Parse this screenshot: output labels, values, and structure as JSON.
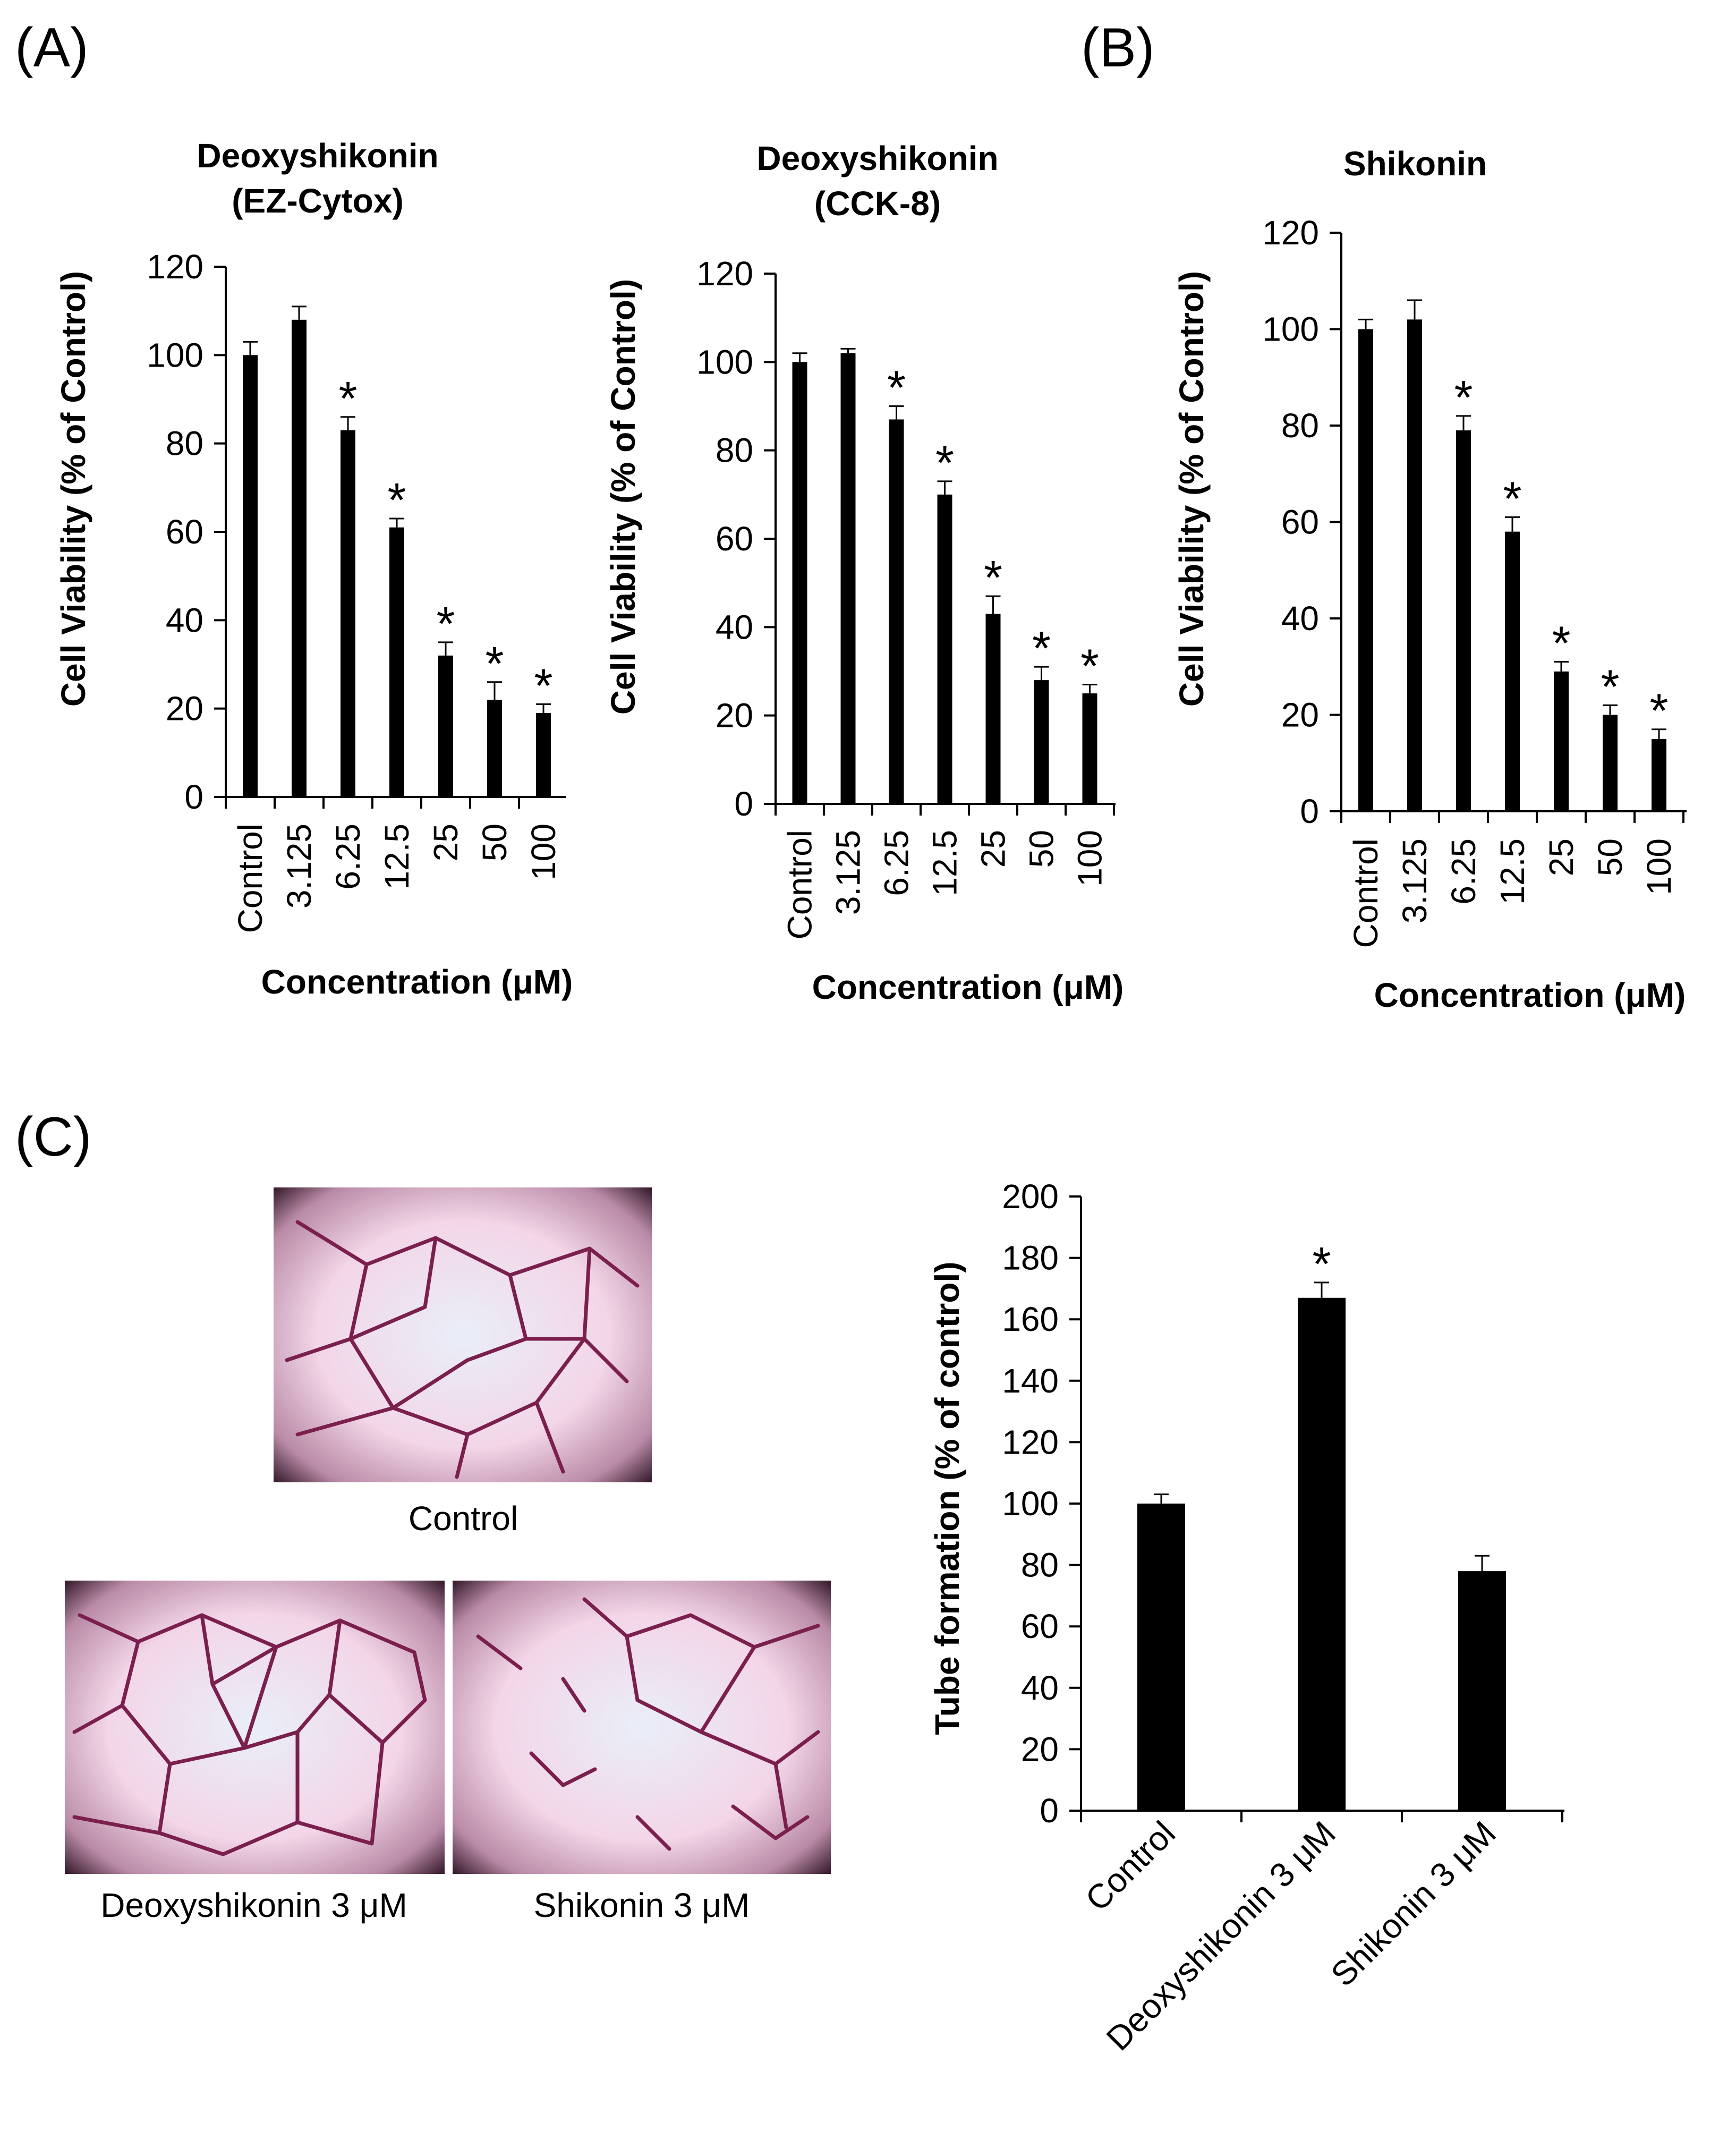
{
  "panel_labels": {
    "a": "(A)",
    "b": "(B)",
    "c": "(C)"
  },
  "micrographs": {
    "control": "Control",
    "deoxyshikonin": "Deoxyshikonin 3 μM",
    "shikonin": "Shikonin 3 μM"
  },
  "colors": {
    "bar": "#000000",
    "micrograph_bg": "#f6d8ea",
    "micrograph_center": "#e9eef8",
    "micrograph_vignette": "#3a1e30",
    "vessel": "#7a1f4e"
  },
  "chart_data": [
    {
      "id": "ez",
      "type": "bar",
      "title": [
        "Deoxyshikonin",
        "(EZ-Cytox)"
      ],
      "xlabel": "Concentration (μM)",
      "ylabel": "Cell Viability (% of Control)",
      "categories": [
        "Control",
        "3.125",
        "6.25",
        "12.5",
        "25",
        "50",
        "100"
      ],
      "values": [
        100,
        108,
        83,
        61,
        32,
        22,
        19
      ],
      "errors": [
        3,
        3,
        3,
        2,
        3,
        4,
        2
      ],
      "significant": [
        false,
        false,
        true,
        true,
        true,
        true,
        true
      ],
      "marker": "*",
      "ylim": [
        0,
        120
      ],
      "yticks": [
        0,
        20,
        40,
        60,
        80,
        100,
        120
      ]
    },
    {
      "id": "cck",
      "type": "bar",
      "title": [
        "Deoxyshikonin",
        "(CCK-8)"
      ],
      "xlabel": "Concentration (μM)",
      "ylabel": "Cell Viability (% of Control)",
      "categories": [
        "Control",
        "3.125",
        "6.25",
        "12.5",
        "25",
        "50",
        "100"
      ],
      "values": [
        100,
        102,
        87,
        70,
        43,
        28,
        25
      ],
      "errors": [
        2,
        1,
        3,
        3,
        4,
        3,
        2
      ],
      "significant": [
        false,
        false,
        true,
        true,
        true,
        true,
        true
      ],
      "marker": "*",
      "ylim": [
        0,
        120
      ],
      "yticks": [
        0,
        20,
        40,
        60,
        80,
        100,
        120
      ]
    },
    {
      "id": "shik",
      "type": "bar",
      "title": [
        "Shikonin"
      ],
      "xlabel": "Concentration (μM)",
      "ylabel": "Cell Viability (% of Control)",
      "categories": [
        "Control",
        "3.125",
        "6.25",
        "12.5",
        "25",
        "50",
        "100"
      ],
      "values": [
        100,
        102,
        79,
        58,
        29,
        20,
        15
      ],
      "errors": [
        2,
        4,
        3,
        3,
        2,
        2,
        2
      ],
      "significant": [
        false,
        false,
        true,
        true,
        true,
        true,
        true
      ],
      "marker": "*",
      "ylim": [
        0,
        120
      ],
      "yticks": [
        0,
        20,
        40,
        60,
        80,
        100,
        120
      ]
    },
    {
      "id": "tube",
      "type": "bar",
      "title": [],
      "xlabel": "",
      "ylabel": "Tube formation (% of control)",
      "categories": [
        "Control",
        "Deoxyshikonin 3 μM",
        "Shikonin 3 μM"
      ],
      "values": [
        100,
        167,
        78
      ],
      "errors": [
        3,
        5,
        5
      ],
      "significant": [
        false,
        true,
        false
      ],
      "marker": "*",
      "ylim": [
        0,
        200
      ],
      "yticks": [
        0,
        20,
        40,
        60,
        80,
        100,
        120,
        140,
        160,
        180,
        200
      ]
    }
  ]
}
